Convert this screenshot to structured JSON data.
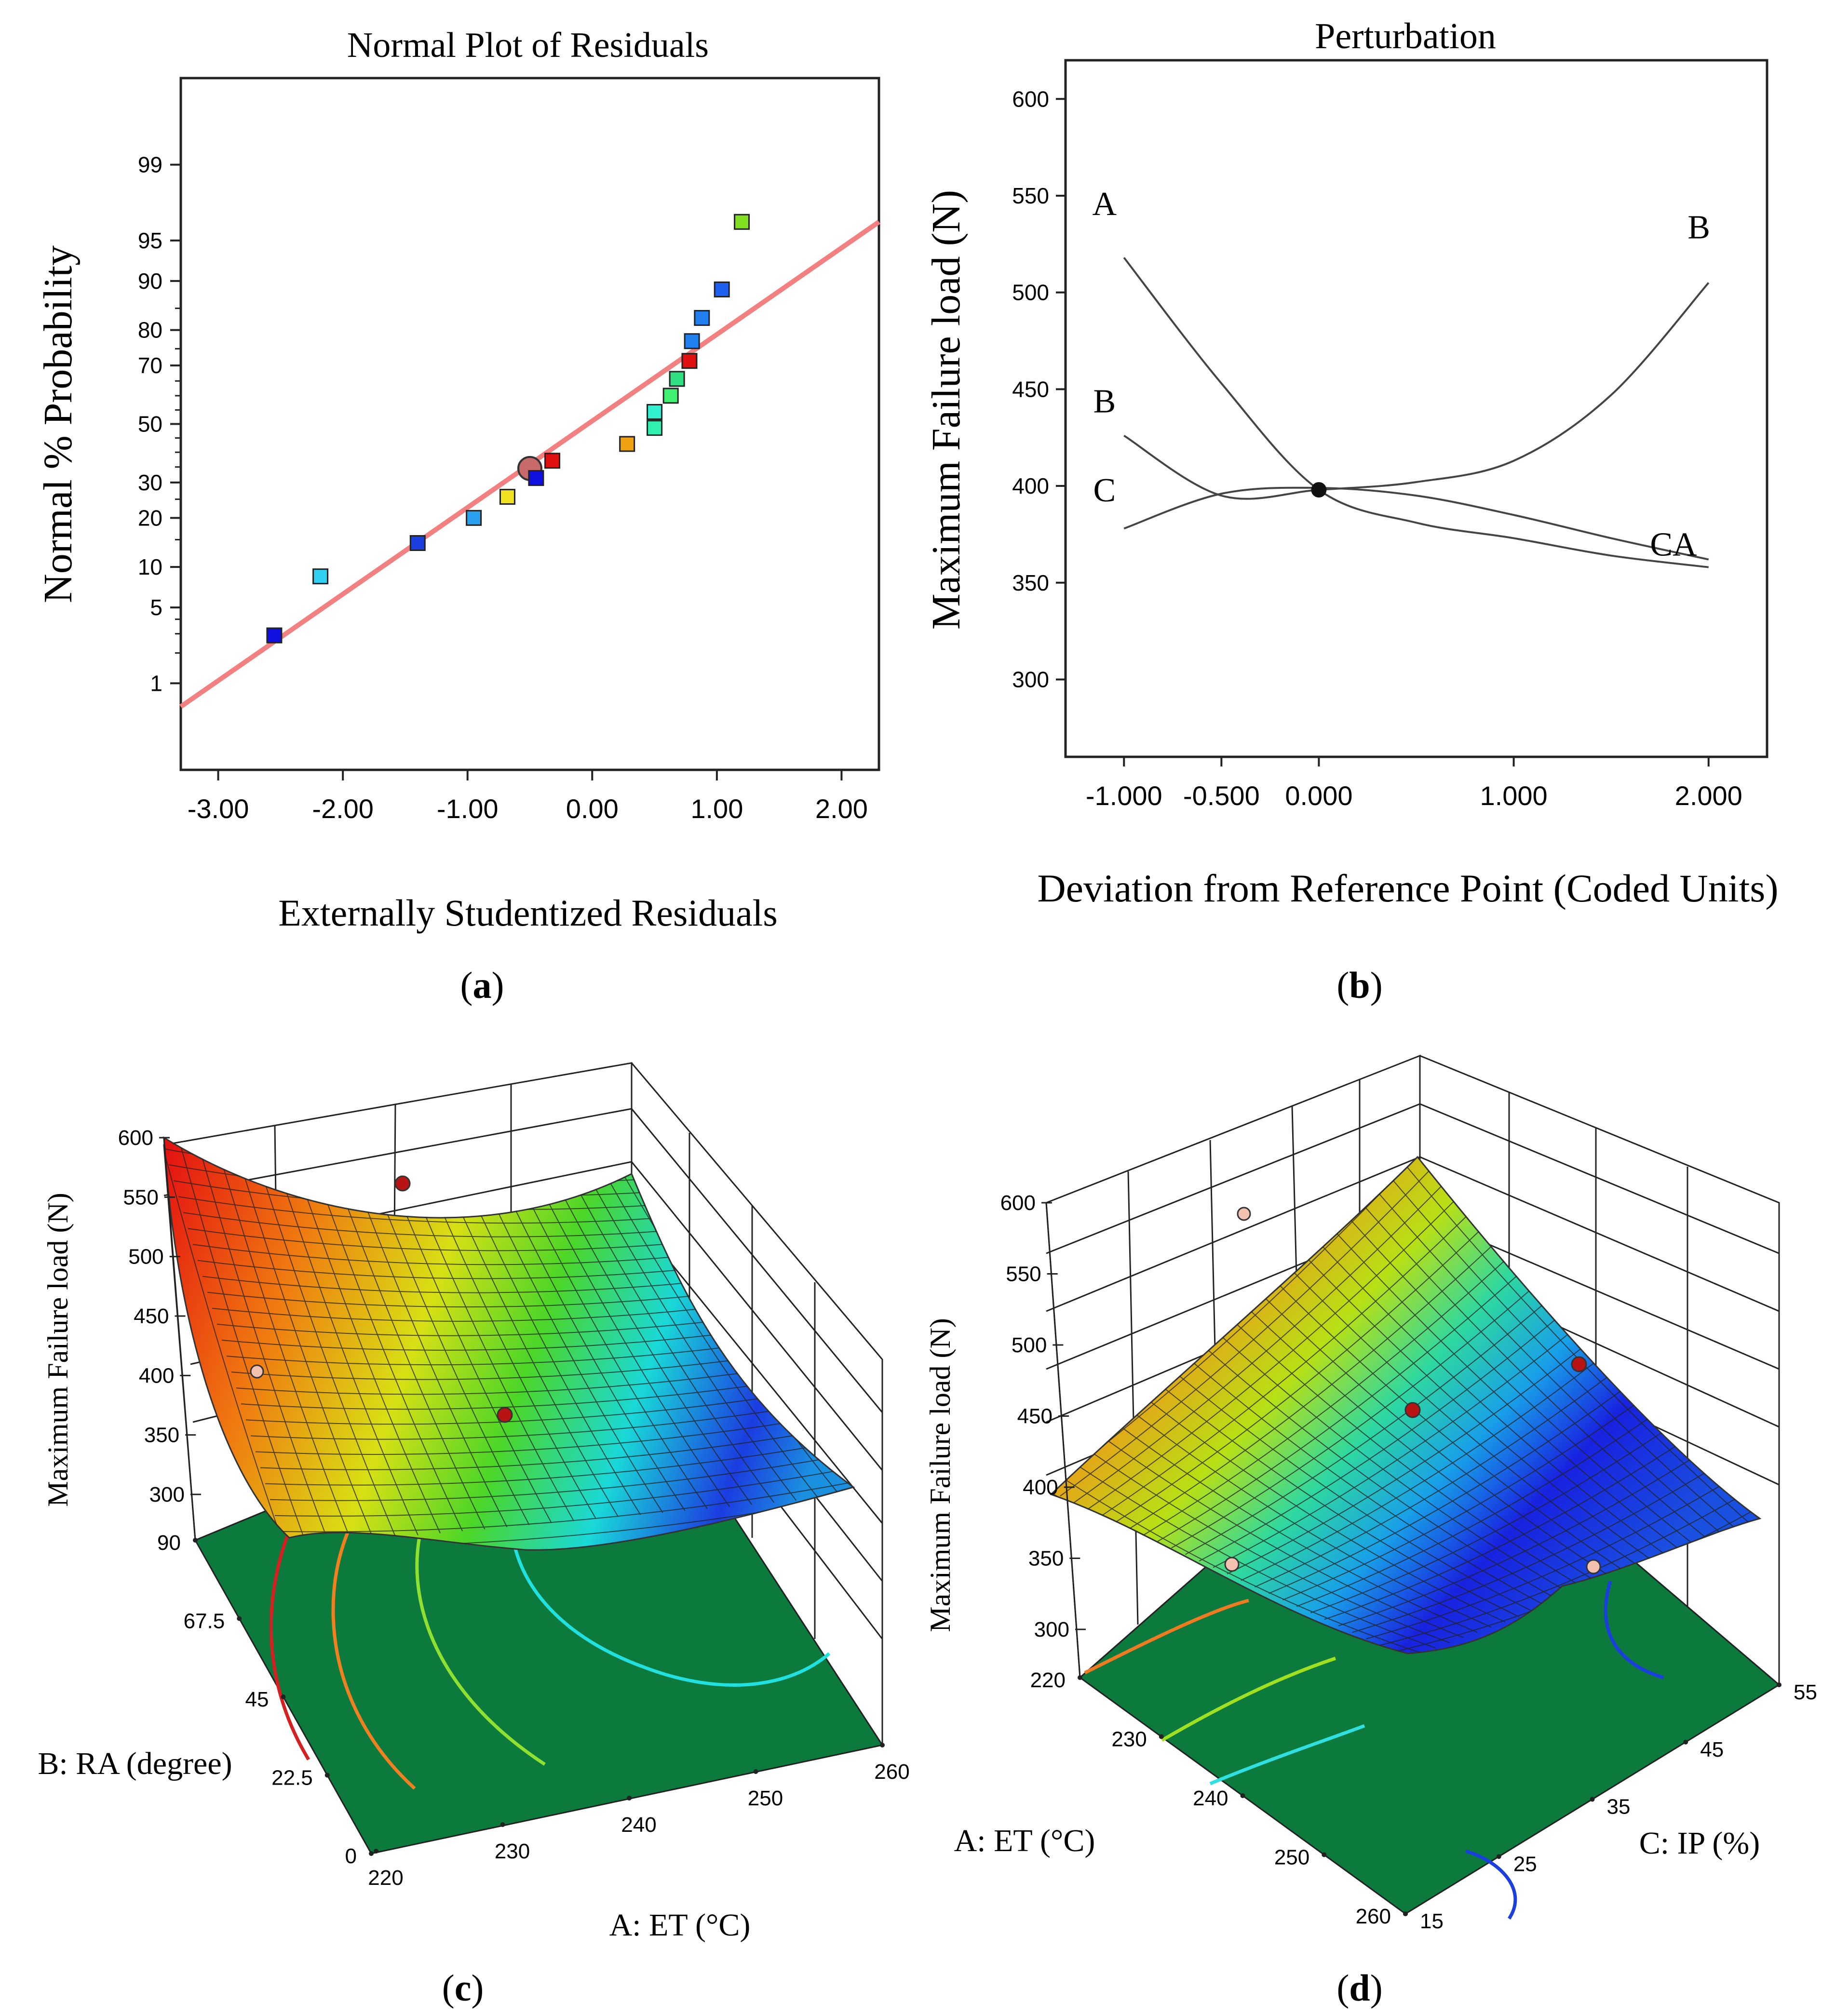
{
  "chart_data": [
    {
      "id": "a",
      "type": "scatter",
      "title": "Normal Plot of Residuals",
      "xlabel": "Externally Studentized Residuals",
      "ylabel": "Normal % Probability",
      "xlim": [
        -3.3,
        2.3
      ],
      "xticks": [
        "-3.00",
        "-2.00",
        "-1.00",
        "0.00",
        "1.00",
        "2.00"
      ],
      "xtick_values": [
        -3,
        -2,
        -1,
        0,
        1,
        2
      ],
      "yticks": [
        "1",
        "5",
        "10",
        "20",
        "30",
        "50",
        "70",
        "80",
        "90",
        "95",
        "99"
      ],
      "ytick_values": [
        1,
        5,
        10,
        20,
        30,
        50,
        70,
        80,
        90,
        95,
        99
      ],
      "reference_line": {
        "x": [
          -3.3,
          2.3
        ],
        "p": [
          0.56,
          96.5
        ],
        "color": "#f28080"
      },
      "points": [
        {
          "x": -2.55,
          "p": 2.9,
          "color": "#1010e0"
        },
        {
          "x": -2.18,
          "p": 8.6,
          "color": "#30d0f0"
        },
        {
          "x": -1.4,
          "p": 14.3,
          "color": "#1a3ee0"
        },
        {
          "x": -0.95,
          "p": 20.0,
          "color": "#2aa0f0"
        },
        {
          "x": -0.68,
          "p": 25.7,
          "color": "#f0e020"
        },
        {
          "x": -0.45,
          "p": 31.4,
          "color": "#1010e0"
        },
        {
          "x": -0.32,
          "p": 37.1,
          "color": "#e01010"
        },
        {
          "x": 0.28,
          "p": 42.9,
          "color": "#f0a010"
        },
        {
          "x": 0.5,
          "p": 48.6,
          "color": "#30f0b0"
        },
        {
          "x": 0.5,
          "p": 54.3,
          "color": "#30f0d0"
        },
        {
          "x": 0.63,
          "p": 60.0,
          "color": "#40f070"
        },
        {
          "x": 0.68,
          "p": 65.7,
          "color": "#30e080"
        },
        {
          "x": 0.78,
          "p": 71.4,
          "color": "#e01010"
        },
        {
          "x": 0.8,
          "p": 77.1,
          "color": "#2080f0"
        },
        {
          "x": 0.88,
          "p": 82.9,
          "color": "#2080f0"
        },
        {
          "x": 1.04,
          "p": 88.6,
          "color": "#2060f0"
        },
        {
          "x": 1.2,
          "p": 96.5,
          "color": "#80e020"
        }
      ],
      "highlight": {
        "x": -0.5,
        "p": 34.5,
        "color": "#c86a6a"
      }
    },
    {
      "id": "b",
      "type": "line",
      "title": "Perturbation",
      "xlabel": "Deviation from Reference Point (Coded Units)",
      "ylabel": "Maximum Failure load (N)",
      "xlim": [
        -1.3,
        2.3
      ],
      "ylim": [
        260,
        620
      ],
      "xticks": [
        "-1.000",
        "-0.500",
        "0.000",
        "1.000",
        "2.000"
      ],
      "xtick_values": [
        -1.0,
        -0.5,
        0.0,
        1.0,
        2.0
      ],
      "yticks": [
        "300",
        "350",
        "400",
        "450",
        "500",
        "550",
        "600"
      ],
      "ytick_values": [
        300,
        350,
        400,
        450,
        500,
        550,
        600
      ],
      "series": [
        {
          "name": "A",
          "x": [
            -1.0,
            -0.5,
            0.0,
            0.5,
            1.0,
            1.5,
            2.0
          ],
          "values": [
            518,
            453,
            398,
            381,
            373,
            364,
            358
          ]
        },
        {
          "name": "B",
          "x": [
            -1.0,
            -0.5,
            0.0,
            0.5,
            1.0,
            1.5,
            2.0
          ],
          "values": [
            426,
            395,
            398,
            402,
            413,
            447,
            505
          ]
        },
        {
          "name": "C",
          "x": [
            -1.0,
            -0.5,
            0.0,
            0.5,
            1.0,
            1.5,
            2.0
          ],
          "values": [
            378,
            396,
            399,
            395,
            385,
            373,
            362
          ]
        }
      ],
      "curve_labels": [
        "A",
        "B",
        "B",
        "C",
        "CA"
      ],
      "reference_point": {
        "x": 0.0,
        "y": 398
      }
    },
    {
      "id": "c",
      "type": "surface",
      "zlabel": "Maximum Failure load (N)",
      "xlabel": "A: ET (°C)",
      "ylabel": "B: RA (degree)",
      "zticks": [
        "300",
        "350",
        "400",
        "450",
        "500",
        "550",
        "600"
      ],
      "xticks": [
        "220",
        "230",
        "240",
        "250",
        "260"
      ],
      "yticks": [
        "0",
        "22.5",
        "45",
        "67.5",
        "90"
      ]
    },
    {
      "id": "d",
      "type": "surface",
      "zlabel": "Maximum Failure load (N)",
      "xlabel": "A: ET (°C)",
      "ylabel": "C: IP (%)",
      "zticks": [
        "300",
        "350",
        "400",
        "450",
        "500",
        "550",
        "600"
      ],
      "xticks": [
        "220",
        "230",
        "240",
        "250",
        "260"
      ],
      "yticks": [
        "15",
        "25",
        "35",
        "45",
        "55"
      ]
    }
  ],
  "captions": {
    "a": "a",
    "b": "b",
    "c": "c",
    "d": "d"
  }
}
